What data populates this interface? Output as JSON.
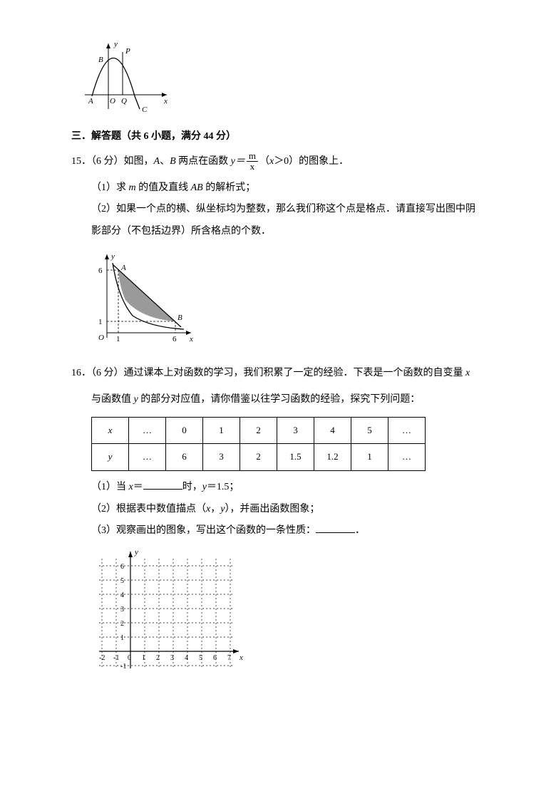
{
  "figure_top": {
    "labels": {
      "y": "y",
      "B": "B",
      "P": "P",
      "A": "A",
      "O": "O",
      "Q": "Q",
      "x": "x",
      "C": "C"
    },
    "stroke": "#000000",
    "fill": "#ffffff"
  },
  "section": {
    "title": "三．解答题（共 6 小题，满分 44 分）"
  },
  "q15": {
    "header_a": "15．（6 分）如图，",
    "header_b": "两点在函数 ",
    "header_c": "（",
    "header_d": "＞0）的图象上．",
    "A": "A",
    "B": "B",
    "y_eq": "y＝",
    "m": "m",
    "x": "x",
    "p1": "（1）求 ",
    "p1b": " 的值及直线 ",
    "p1c": " 的解析式；",
    "m2": "m",
    "AB": "AB",
    "p2": "（2）如果一个点的横、纵坐标均为整数，那么我们称这个点是格点．请直接写出图中阴",
    "p2b": "影部分（不包括边界）所含格点的个数．",
    "figure": {
      "labels": {
        "y": "y",
        "A": "A",
        "B": "B",
        "O": "O",
        "x": "x",
        "six": "6",
        "one": "1",
        "one_x": "1",
        "six_x": "6"
      },
      "stroke": "#000000",
      "shade": "#9a9a9a"
    }
  },
  "q16": {
    "line1a": "16．（6 分）通过课本上对函数的学习，我们积累了一定的经验．下表是一个函数的自变量 ",
    "line1_x": "x",
    "line2a": "与函数值 ",
    "line2_y": "y",
    "line2b": " 的部分对应值，请你借鉴以往学习函数的经验，探究下列问题：",
    "table": {
      "row_x": [
        "x",
        "…",
        "0",
        "1",
        "2",
        "3",
        "4",
        "5",
        "…"
      ],
      "row_y": [
        "y",
        "…",
        "6",
        "3",
        "2",
        "1.5",
        "1.2",
        "1",
        "…"
      ]
    },
    "p1a": "（1）当 ",
    "p1_x": "x",
    "p1b": "＝",
    "p1c": "时，",
    "p1_y": "y",
    "p1d": "＝1.5；",
    "p2a": "（2）根据表中数值描点（",
    "p2_x": "x",
    "p2_y": "y",
    "p2b": "，",
    "p2c": "），并画出函数图象；",
    "p3a": "（3）观察画出的图象，写出这个函数的一条性质：",
    "p3b": "．",
    "grid": {
      "stroke": "#000000",
      "x_ticks": [
        "-2",
        "-1",
        "0",
        "1",
        "2",
        "3",
        "4",
        "5",
        "6",
        "7"
      ],
      "y_ticks": [
        "6",
        "5",
        "4",
        "3",
        "2",
        "1",
        "-1"
      ],
      "x_label": "x",
      "y_label": "y"
    }
  }
}
